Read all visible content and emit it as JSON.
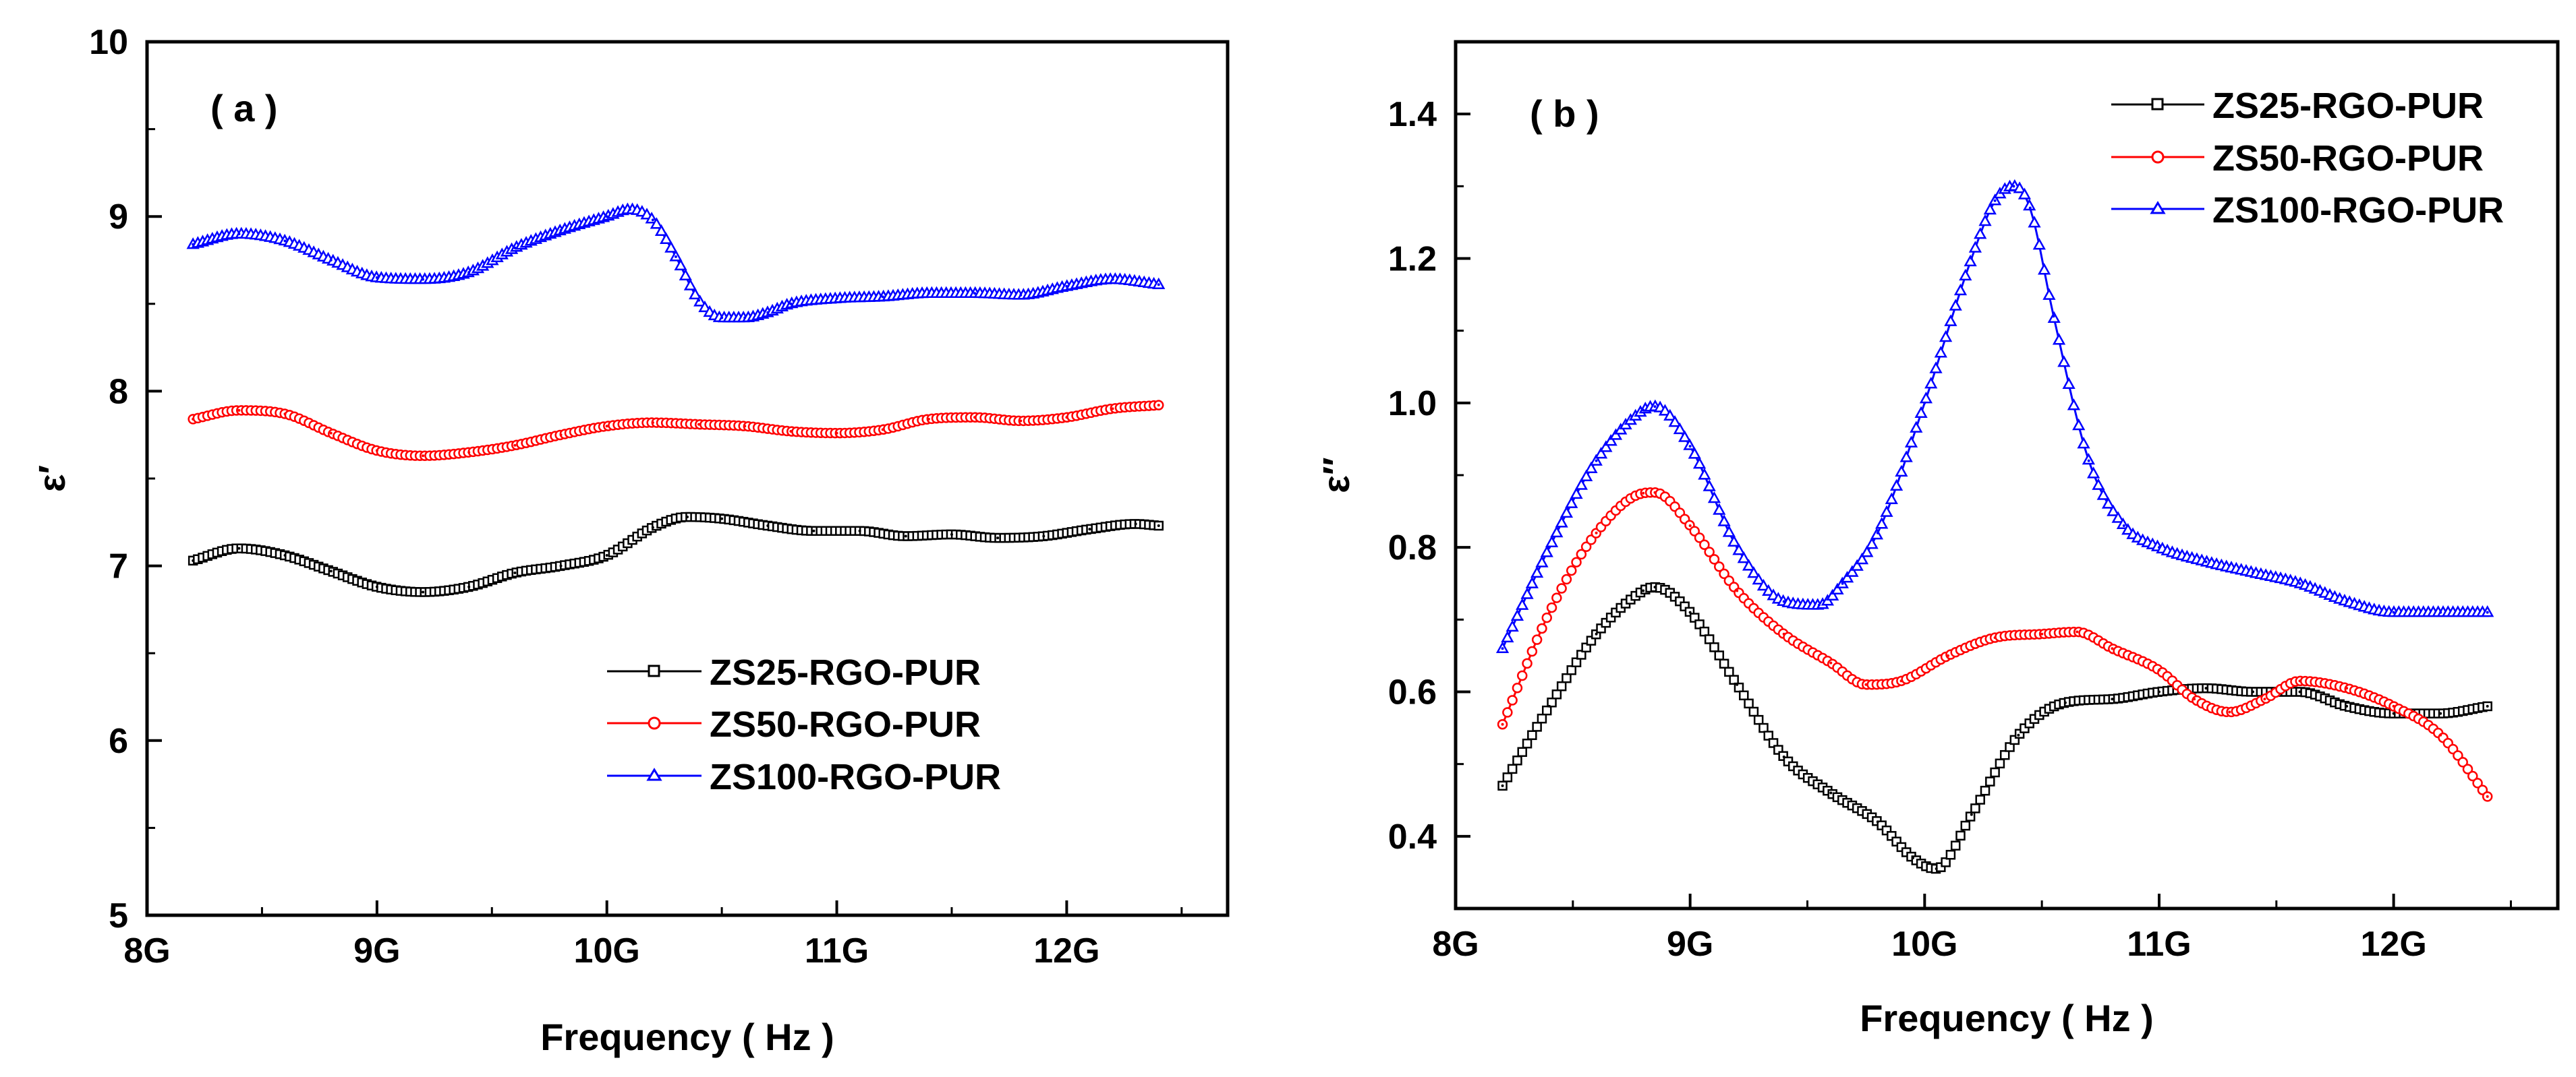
{
  "figure": {
    "colors": {
      "ZS25": "#000000",
      "ZS50": "#ff0000",
      "ZS100": "#0000ff"
    }
  },
  "chart_data": [
    {
      "type": "line",
      "panel_label": "( a )",
      "xlabel": "Frequency ( Hz )",
      "ylabel": "ε′",
      "xlim": [
        8,
        12.7
      ],
      "ylim": [
        5,
        10
      ],
      "x_ticks": [
        8,
        9,
        10,
        11,
        12
      ],
      "x_tick_labels": [
        "8G",
        "9G",
        "10G",
        "11G",
        "12G"
      ],
      "y_ticks": [
        5,
        6,
        7,
        8,
        9,
        10
      ],
      "y_tick_labels": [
        "5",
        "6",
        "7",
        "8",
        "9",
        "10"
      ],
      "legend_position": "lower-right",
      "series": [
        {
          "name": "ZS25-RGO-PUR",
          "color": "#000000",
          "marker": "square",
          "x": [
            8.2,
            8.4,
            8.6,
            8.8,
            9.0,
            9.2,
            9.4,
            9.6,
            9.8,
            10.0,
            10.2,
            10.35,
            10.5,
            10.7,
            10.9,
            11.1,
            11.3,
            11.5,
            11.7,
            11.9,
            12.1,
            12.3,
            12.4
          ],
          "y": [
            7.03,
            7.1,
            7.06,
            6.97,
            6.88,
            6.85,
            6.88,
            6.96,
            7.0,
            7.06,
            7.22,
            7.28,
            7.27,
            7.23,
            7.2,
            7.2,
            7.17,
            7.18,
            7.16,
            7.17,
            7.21,
            7.24,
            7.23
          ]
        },
        {
          "name": "ZS50-RGO-PUR",
          "color": "#ff0000",
          "marker": "circle",
          "x": [
            8.2,
            8.4,
            8.6,
            8.8,
            9.0,
            9.2,
            9.4,
            9.6,
            9.8,
            10.0,
            10.2,
            10.4,
            10.6,
            10.8,
            11.0,
            11.2,
            11.4,
            11.6,
            11.8,
            12.0,
            12.2,
            12.4
          ],
          "y": [
            7.84,
            7.89,
            7.87,
            7.76,
            7.66,
            7.63,
            7.65,
            7.69,
            7.75,
            7.8,
            7.82,
            7.81,
            7.8,
            7.77,
            7.76,
            7.78,
            7.84,
            7.85,
            7.83,
            7.85,
            7.9,
            7.92
          ]
        },
        {
          "name": "ZS100-RGO-PUR",
          "color": "#0000ff",
          "marker": "triangle",
          "x": [
            8.2,
            8.4,
            8.6,
            8.8,
            9.0,
            9.2,
            9.4,
            9.6,
            9.8,
            10.0,
            10.1,
            10.2,
            10.3,
            10.4,
            10.5,
            10.6,
            10.7,
            10.8,
            11.0,
            11.2,
            11.4,
            11.6,
            11.8,
            12.0,
            12.2,
            12.4
          ],
          "y": [
            8.84,
            8.9,
            8.86,
            8.75,
            8.65,
            8.64,
            8.68,
            8.82,
            8.92,
            9.0,
            9.04,
            8.98,
            8.77,
            8.52,
            8.42,
            8.42,
            8.45,
            8.5,
            8.53,
            8.54,
            8.56,
            8.56,
            8.55,
            8.6,
            8.64,
            8.61
          ]
        }
      ]
    },
    {
      "type": "line",
      "panel_label": "( b )",
      "xlabel": "Frequency ( Hz )",
      "ylabel": "ε″",
      "xlim": [
        8,
        12.7
      ],
      "ylim": [
        0.3,
        1.5
      ],
      "x_ticks": [
        8,
        9,
        10,
        11,
        12
      ],
      "x_tick_labels": [
        "8G",
        "9G",
        "10G",
        "11G",
        "12G"
      ],
      "y_ticks": [
        0.4,
        0.6,
        0.8,
        1.0,
        1.2,
        1.4
      ],
      "y_tick_labels": [
        "0.4",
        "0.6",
        "0.8",
        "1.0",
        "1.2",
        "1.4"
      ],
      "legend_position": "top-right",
      "series": [
        {
          "name": "ZS25-RGO-PUR",
          "color": "#000000",
          "marker": "square",
          "x": [
            8.2,
            8.4,
            8.6,
            8.8,
            8.85,
            9.0,
            9.2,
            9.4,
            9.6,
            9.8,
            9.95,
            10.05,
            10.2,
            10.4,
            10.6,
            10.8,
            11.0,
            11.2,
            11.4,
            11.6,
            11.8,
            12.0,
            12.2,
            12.4
          ],
          "y": [
            0.47,
            0.58,
            0.68,
            0.74,
            0.745,
            0.71,
            0.61,
            0.51,
            0.46,
            0.42,
            0.37,
            0.355,
            0.43,
            0.54,
            0.585,
            0.59,
            0.6,
            0.605,
            0.6,
            0.6,
            0.58,
            0.57,
            0.57,
            0.58
          ]
        },
        {
          "name": "ZS50-RGO-PUR",
          "color": "#ff0000",
          "marker": "circle",
          "x": [
            8.2,
            8.4,
            8.6,
            8.8,
            8.85,
            9.0,
            9.2,
            9.4,
            9.6,
            9.75,
            9.9,
            10.1,
            10.3,
            10.5,
            10.65,
            10.8,
            11.0,
            11.15,
            11.3,
            11.45,
            11.6,
            11.8,
            12.0,
            12.2,
            12.4
          ],
          "y": [
            0.555,
            0.71,
            0.82,
            0.875,
            0.876,
            0.83,
            0.74,
            0.68,
            0.64,
            0.61,
            0.615,
            0.65,
            0.675,
            0.68,
            0.683,
            0.66,
            0.63,
            0.59,
            0.572,
            0.59,
            0.615,
            0.605,
            0.58,
            0.54,
            0.455
          ]
        },
        {
          "name": "ZS100-RGO-PUR",
          "color": "#0000ff",
          "marker": "triangle",
          "x": [
            8.2,
            8.4,
            8.6,
            8.8,
            8.85,
            9.0,
            9.2,
            9.4,
            9.55,
            9.65,
            9.8,
            10.0,
            10.2,
            10.3,
            10.38,
            10.45,
            10.55,
            10.7,
            10.85,
            11.0,
            11.2,
            11.4,
            11.6,
            11.8,
            12.0,
            12.2,
            12.4
          ],
          "y": [
            0.66,
            0.8,
            0.92,
            0.99,
            0.995,
            0.94,
            0.8,
            0.725,
            0.72,
            0.75,
            0.82,
            1.0,
            1.2,
            1.28,
            1.3,
            1.27,
            1.12,
            0.92,
            0.83,
            0.8,
            0.78,
            0.765,
            0.75,
            0.725,
            0.71,
            0.71,
            0.71
          ]
        }
      ]
    }
  ]
}
